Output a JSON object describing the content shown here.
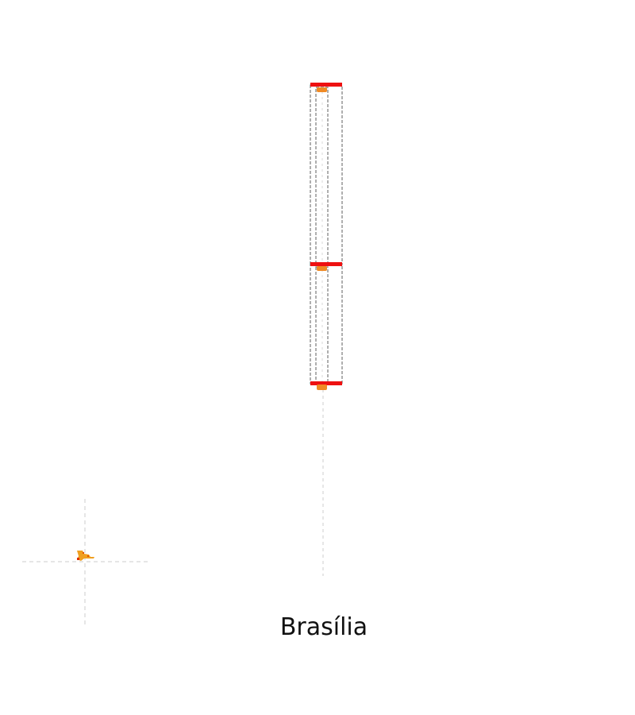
{
  "caption": "Brasília",
  "colors": {
    "background": "#ffffff",
    "guide": "#cccccc",
    "frame": "#7a7a7a",
    "bar": "#ee1111",
    "marker": "#f08a24",
    "crosshair_mark": "#e07800"
  },
  "icons": [
    "crosshair-marker-icon"
  ]
}
